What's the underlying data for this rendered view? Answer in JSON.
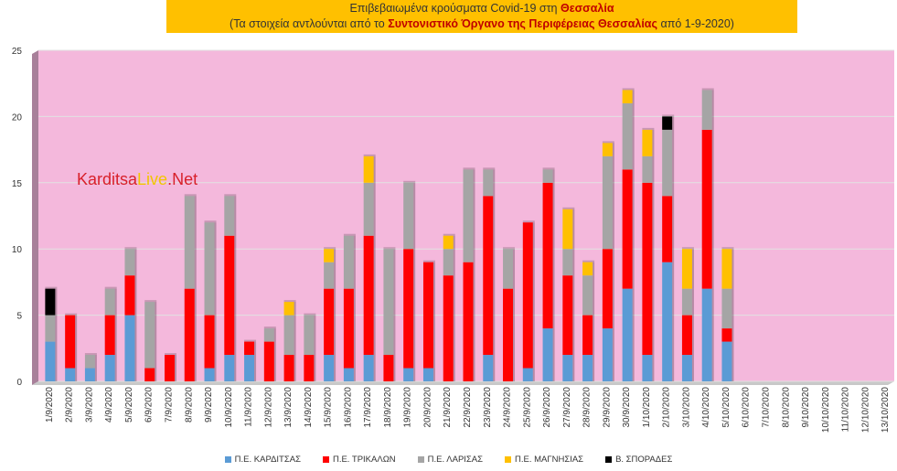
{
  "title": {
    "line1_prefix": "Επιβεβαιωμένα κρούσματα Covid-19 στη ",
    "line1_highlight": "Θεσσαλία",
    "line2_prefix": "(Τα στοιχεία αντλούνται από το ",
    "line2_highlight": "Συντονιστικό Όργανο της Περιφέρειας Θεσσαλίας",
    "line2_suffix": " από 1-9-2020)"
  },
  "watermark": {
    "part1": "Karditsa",
    "part2": "Live",
    "part3": ".Net"
  },
  "colors": {
    "background": "#ffffff",
    "plot_area": "#f4b8dc",
    "title_box": "#ffc000",
    "series": [
      "#5b9bd5",
      "#ff0000",
      "#a5a5a5",
      "#ffc000",
      "#000000"
    ]
  },
  "chart_data": {
    "type": "bar",
    "stacked": true,
    "ylim": [
      0,
      25
    ],
    "yticks": [
      0,
      5,
      10,
      15,
      20,
      25
    ],
    "grid": true,
    "legend_position": "bottom",
    "categories": [
      "1/9/2020",
      "2/9/2020",
      "3/9/2020",
      "4/9/2020",
      "5/9/2020",
      "6/9/2020",
      "7/9/2020",
      "8/9/2020",
      "9/9/2020",
      "10/9/2020",
      "11/9/2020",
      "12/9/2020",
      "13/9/2020",
      "14/9/2020",
      "15/9/2020",
      "16/9/2020",
      "17/9/2020",
      "18/9/2020",
      "19/9/2020",
      "20/9/2020",
      "21/9/2020",
      "22/9/2020",
      "23/9/2020",
      "24/9/2020",
      "25/9/2020",
      "26/9/2020",
      "27/9/2020",
      "28/9/2020",
      "29/9/2020",
      "30/9/2020",
      "1/10/2020",
      "2/10/2020",
      "3/10/2020",
      "4/10/2020",
      "5/10/2020",
      "6/10/2020",
      "7/10/2020",
      "8/10/2020",
      "9/10/2020",
      "10/10/2020",
      "11/10/2020",
      "12/10/2020",
      "13/10/2020"
    ],
    "series": [
      {
        "name": "Π.Ε. ΚΑΡΔΙΤΣΑΣ",
        "values": [
          3,
          1,
          1,
          2,
          5,
          0,
          0,
          0,
          1,
          2,
          2,
          0,
          0,
          0,
          2,
          1,
          2,
          0,
          1,
          1,
          0,
          0,
          2,
          0,
          1,
          4,
          2,
          2,
          4,
          7,
          2,
          9,
          2,
          7,
          3,
          0,
          0,
          0,
          0,
          0,
          0,
          0,
          0
        ]
      },
      {
        "name": "Π.Ε. ΤΡΙΚΑΛΩΝ",
        "values": [
          0,
          4,
          0,
          3,
          3,
          1,
          2,
          7,
          4,
          9,
          1,
          3,
          2,
          2,
          5,
          6,
          9,
          2,
          9,
          8,
          8,
          9,
          12,
          7,
          11,
          11,
          6,
          3,
          6,
          9,
          13,
          5,
          3,
          12,
          1,
          0,
          0,
          0,
          0,
          0,
          0,
          0,
          0
        ]
      },
      {
        "name": "Π.Ε. ΛΑΡΙΣΑΣ",
        "values": [
          2,
          0,
          1,
          2,
          2,
          5,
          0,
          7,
          7,
          3,
          0,
          1,
          3,
          3,
          2,
          4,
          4,
          8,
          5,
          0,
          2,
          7,
          2,
          3,
          0,
          1,
          2,
          3,
          7,
          5,
          2,
          5,
          2,
          3,
          3,
          0,
          0,
          0,
          0,
          0,
          0,
          0,
          0
        ]
      },
      {
        "name": "Π.Ε. ΜΑΓΝΗΣΙΑΣ",
        "values": [
          0,
          0,
          0,
          0,
          0,
          0,
          0,
          0,
          0,
          0,
          0,
          0,
          1,
          0,
          1,
          0,
          2,
          0,
          0,
          0,
          1,
          0,
          0,
          0,
          0,
          0,
          3,
          1,
          1,
          1,
          2,
          0,
          3,
          0,
          3,
          0,
          0,
          0,
          0,
          0,
          0,
          0,
          0
        ]
      },
      {
        "name": "Β. ΣΠΟΡΑΔΕΣ",
        "values": [
          2,
          0,
          0,
          0,
          0,
          0,
          0,
          0,
          0,
          0,
          0,
          0,
          0,
          0,
          0,
          0,
          0,
          0,
          0,
          0,
          0,
          0,
          0,
          0,
          0,
          0,
          0,
          0,
          0,
          0,
          0,
          1,
          0,
          0,
          0,
          0,
          0,
          0,
          0,
          0,
          0,
          0,
          0
        ]
      }
    ]
  }
}
